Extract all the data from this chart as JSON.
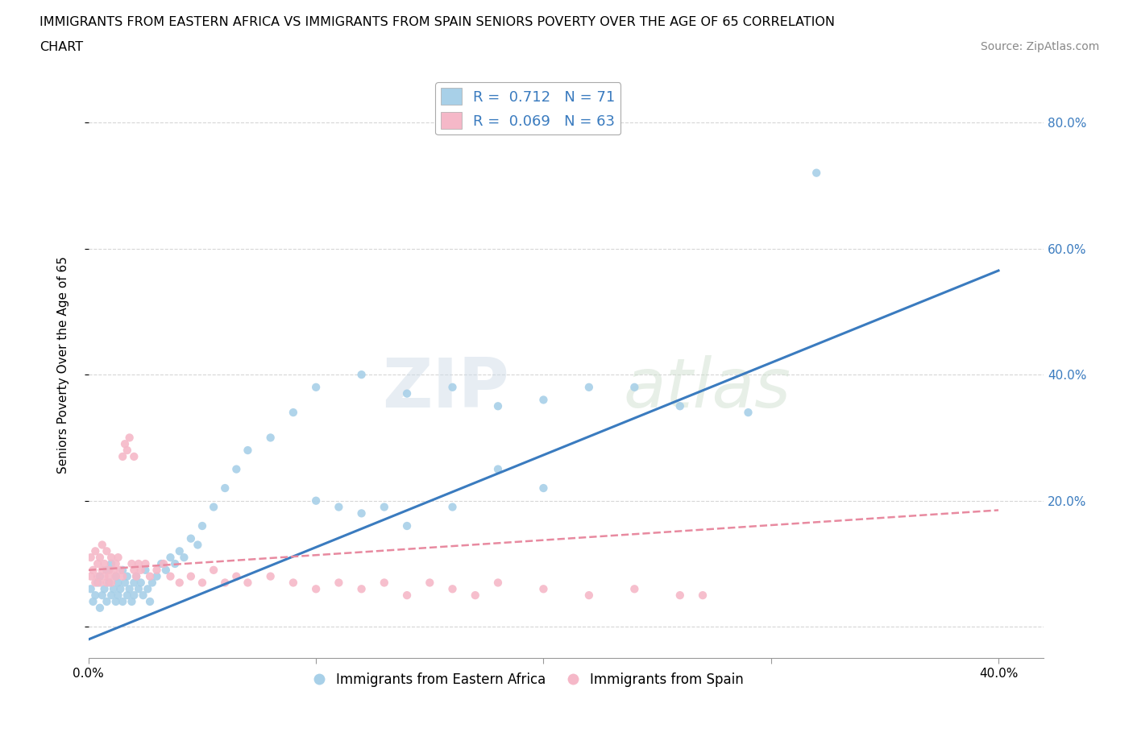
{
  "title_line1": "IMMIGRANTS FROM EASTERN AFRICA VS IMMIGRANTS FROM SPAIN SENIORS POVERTY OVER THE AGE OF 65 CORRELATION",
  "title_line2": "CHART",
  "source": "Source: ZipAtlas.com",
  "ylabel": "Seniors Poverty Over the Age of 65",
  "xlim": [
    0.0,
    0.42
  ],
  "ylim": [
    -0.05,
    0.88
  ],
  "yticks": [
    0.0,
    0.2,
    0.4,
    0.6,
    0.8
  ],
  "xticks": [
    0.0,
    0.1,
    0.2,
    0.3,
    0.4
  ],
  "xtick_labels": [
    "0.0%",
    "",
    "",
    "",
    "40.0%"
  ],
  "right_ytick_labels": [
    "80.0%",
    "60.0%",
    "40.0%",
    "20.0%"
  ],
  "right_ytick_positions": [
    0.8,
    0.6,
    0.4,
    0.2
  ],
  "blue_color": "#a8d0e8",
  "pink_color": "#f5b8c8",
  "blue_line_color": "#3a7bbf",
  "pink_line_color": "#e88aa0",
  "watermark_zip": "ZIP",
  "watermark_atlas": "atlas",
  "R1": 0.712,
  "N1": 71,
  "R2": 0.069,
  "N2": 63,
  "blue_scatter_x": [
    0.001,
    0.002,
    0.003,
    0.004,
    0.005,
    0.005,
    0.006,
    0.007,
    0.008,
    0.008,
    0.009,
    0.01,
    0.01,
    0.011,
    0.012,
    0.012,
    0.013,
    0.013,
    0.014,
    0.015,
    0.015,
    0.016,
    0.017,
    0.017,
    0.018,
    0.019,
    0.02,
    0.02,
    0.021,
    0.022,
    0.023,
    0.024,
    0.025,
    0.026,
    0.027,
    0.028,
    0.03,
    0.032,
    0.034,
    0.036,
    0.038,
    0.04,
    0.042,
    0.045,
    0.048,
    0.05,
    0.055,
    0.06,
    0.065,
    0.07,
    0.08,
    0.09,
    0.1,
    0.11,
    0.12,
    0.13,
    0.14,
    0.16,
    0.18,
    0.2,
    0.1,
    0.12,
    0.14,
    0.16,
    0.18,
    0.2,
    0.22,
    0.24,
    0.26,
    0.29,
    0.32
  ],
  "blue_scatter_y": [
    0.06,
    0.04,
    0.05,
    0.07,
    0.03,
    0.08,
    0.05,
    0.06,
    0.04,
    0.09,
    0.07,
    0.05,
    0.1,
    0.06,
    0.04,
    0.08,
    0.07,
    0.05,
    0.06,
    0.04,
    0.09,
    0.07,
    0.05,
    0.08,
    0.06,
    0.04,
    0.07,
    0.05,
    0.08,
    0.06,
    0.07,
    0.05,
    0.09,
    0.06,
    0.04,
    0.07,
    0.08,
    0.1,
    0.09,
    0.11,
    0.1,
    0.12,
    0.11,
    0.14,
    0.13,
    0.16,
    0.19,
    0.22,
    0.25,
    0.28,
    0.3,
    0.34,
    0.2,
    0.19,
    0.18,
    0.19,
    0.16,
    0.19,
    0.25,
    0.22,
    0.38,
    0.4,
    0.37,
    0.38,
    0.35,
    0.36,
    0.38,
    0.38,
    0.35,
    0.34,
    0.72
  ],
  "pink_scatter_x": [
    0.001,
    0.001,
    0.002,
    0.003,
    0.003,
    0.004,
    0.004,
    0.005,
    0.005,
    0.006,
    0.006,
    0.007,
    0.007,
    0.008,
    0.008,
    0.009,
    0.009,
    0.01,
    0.01,
    0.011,
    0.012,
    0.012,
    0.013,
    0.014,
    0.015,
    0.015,
    0.016,
    0.017,
    0.018,
    0.019,
    0.02,
    0.021,
    0.022,
    0.023,
    0.025,
    0.027,
    0.03,
    0.033,
    0.036,
    0.04,
    0.045,
    0.05,
    0.055,
    0.06,
    0.065,
    0.07,
    0.08,
    0.09,
    0.1,
    0.11,
    0.12,
    0.13,
    0.14,
    0.15,
    0.16,
    0.17,
    0.18,
    0.2,
    0.22,
    0.24,
    0.26,
    0.27,
    0.02
  ],
  "pink_scatter_y": [
    0.08,
    0.11,
    0.09,
    0.07,
    0.12,
    0.1,
    0.08,
    0.11,
    0.07,
    0.09,
    0.13,
    0.08,
    0.1,
    0.07,
    0.12,
    0.09,
    0.08,
    0.07,
    0.11,
    0.09,
    0.1,
    0.08,
    0.11,
    0.09,
    0.08,
    0.27,
    0.29,
    0.28,
    0.3,
    0.1,
    0.09,
    0.08,
    0.1,
    0.09,
    0.1,
    0.08,
    0.09,
    0.1,
    0.08,
    0.07,
    0.08,
    0.07,
    0.09,
    0.07,
    0.08,
    0.07,
    0.08,
    0.07,
    0.06,
    0.07,
    0.06,
    0.07,
    0.05,
    0.07,
    0.06,
    0.05,
    0.07,
    0.06,
    0.05,
    0.06,
    0.05,
    0.05,
    0.27
  ],
  "blue_trend_x": [
    0.0,
    0.4
  ],
  "blue_trend_y": [
    -0.02,
    0.565
  ],
  "pink_trend_x": [
    0.0,
    0.4
  ],
  "pink_trend_y": [
    0.09,
    0.185
  ],
  "grid_color": "#cccccc",
  "background_color": "#ffffff"
}
